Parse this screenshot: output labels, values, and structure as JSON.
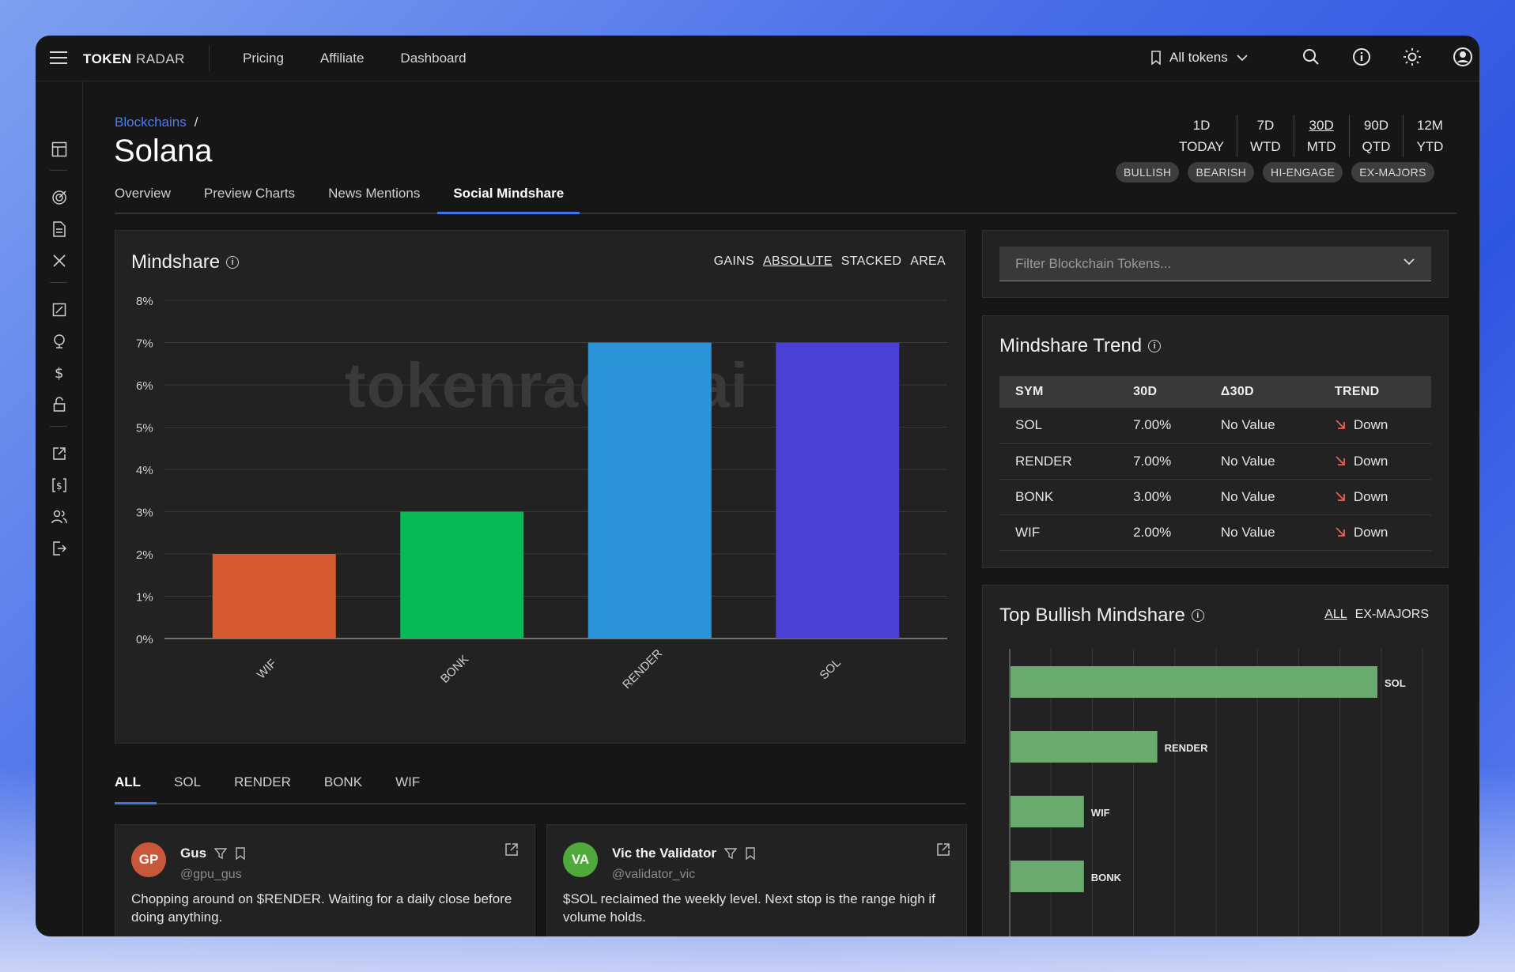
{
  "brand": {
    "part1": "TOKEN",
    "part2": "RADAR"
  },
  "nav": [
    "Pricing",
    "Affiliate",
    "Dashboard"
  ],
  "token_select": "All tokens",
  "breadcrumb": "Blockchains",
  "page_title": "Solana",
  "periods": [
    {
      "top": "1D",
      "bottom": "TODAY",
      "active": false
    },
    {
      "top": "7D",
      "bottom": "WTD",
      "active": false
    },
    {
      "top": "30D",
      "bottom": "MTD",
      "active": true
    },
    {
      "top": "90D",
      "bottom": "QTD",
      "active": false
    },
    {
      "top": "12M",
      "bottom": "YTD",
      "active": false
    }
  ],
  "chips": [
    "BULLISH",
    "BEARISH",
    "HI-ENGAGE",
    "EX-MAJORS"
  ],
  "tabs": [
    {
      "label": "Overview",
      "active": false
    },
    {
      "label": "Preview Charts",
      "active": false
    },
    {
      "label": "News Mentions",
      "active": false
    },
    {
      "label": "Social Mindshare",
      "active": true
    }
  ],
  "mindshare_panel": {
    "title": "Mindshare",
    "modes": [
      {
        "label": "GAINS",
        "active": false
      },
      {
        "label": "ABSOLUTE",
        "active": true
      },
      {
        "label": "STACKED",
        "active": false
      },
      {
        "label": "AREA",
        "active": false
      }
    ],
    "watermark": "tokenradar.ai"
  },
  "chart_data": [
    {
      "type": "bar",
      "title": "Mindshare",
      "categories": [
        "WIF",
        "BONK",
        "RENDER",
        "SOL"
      ],
      "values": [
        2,
        3,
        7,
        7
      ],
      "colors": [
        "#d65a30",
        "#08b958",
        "#2b93d7",
        "#4a40d4"
      ],
      "ylim": [
        0,
        8
      ],
      "yticks": [
        "0%",
        "1%",
        "2%",
        "3%",
        "4%",
        "5%",
        "6%",
        "7%",
        "8%"
      ],
      "grid": true,
      "legend": "none"
    },
    {
      "type": "bar",
      "orientation": "horizontal",
      "title": "Top Bullish Mindshare",
      "categories": [
        "SOL",
        "RENDER",
        "WIF",
        "BONK"
      ],
      "values": [
        8,
        3.2,
        1.6,
        1.6
      ],
      "color": "#6aaa6e",
      "xlim": [
        0,
        9
      ],
      "grid": true
    }
  ],
  "filter": {
    "placeholder": "Filter Blockchain Tokens..."
  },
  "trend": {
    "title": "Mindshare Trend",
    "headers": [
      "SYM",
      "30D",
      "Δ30D",
      "TREND"
    ],
    "rows": [
      {
        "sym": "SOL",
        "d30": "7.00%",
        "delta": "No Value",
        "trend": "Down"
      },
      {
        "sym": "RENDER",
        "d30": "7.00%",
        "delta": "No Value",
        "trend": "Down"
      },
      {
        "sym": "BONK",
        "d30": "3.00%",
        "delta": "No Value",
        "trend": "Down"
      },
      {
        "sym": "WIF",
        "d30": "2.00%",
        "delta": "No Value",
        "trend": "Down"
      }
    ]
  },
  "top_bullish": {
    "title": "Top Bullish Mindshare",
    "modes": [
      {
        "label": "ALL",
        "active": true
      },
      {
        "label": "EX-MAJORS",
        "active": false
      }
    ]
  },
  "feed_tabs": [
    {
      "label": "ALL",
      "active": true
    },
    {
      "label": "SOL",
      "active": false
    },
    {
      "label": "RENDER",
      "active": false
    },
    {
      "label": "BONK",
      "active": false
    },
    {
      "label": "WIF",
      "active": false
    }
  ],
  "posts": [
    {
      "initials": "GP",
      "avatar_color": "#c9573a",
      "name": "Gus",
      "handle": "@gpu_gus",
      "text": "Chopping around on $RENDER. Waiting for a daily close before doing anything."
    },
    {
      "initials": "VA",
      "avatar_color": "#4eaa3a",
      "name": "Vic the Validator",
      "handle": "@validator_vic",
      "text": "$SOL reclaimed the weekly level. Next stop is the range high if volume holds."
    }
  ]
}
